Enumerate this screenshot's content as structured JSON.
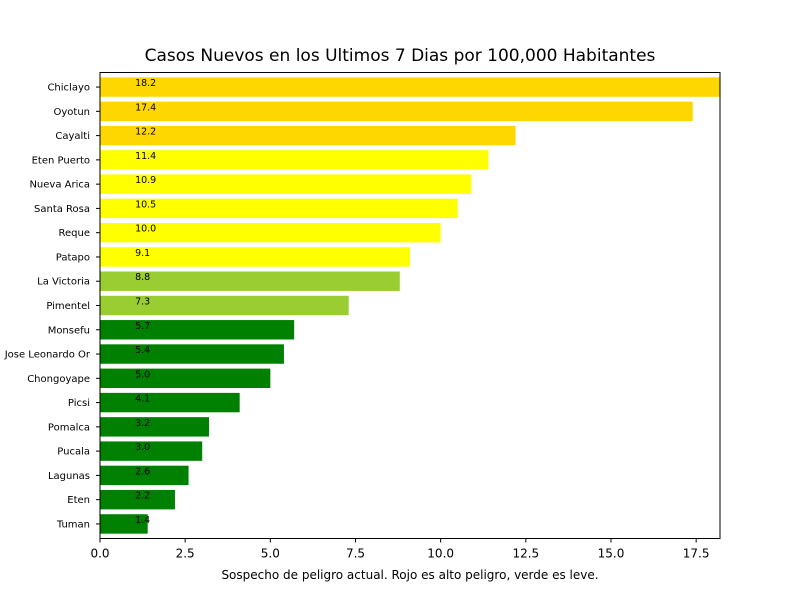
{
  "chart_data": {
    "type": "bar",
    "orientation": "horizontal",
    "title": "Casos Nuevos en los Ultimos 7 Dias por 100,000 Habitantes",
    "xlabel": "Sospecho de peligro actual. Rojo es alto peligro, verde es leve.",
    "ylabel": "",
    "xlim": [
      0,
      18.2
    ],
    "xticks": [
      "0.0",
      "2.5",
      "5.0",
      "7.5",
      "10.0",
      "12.5",
      "15.0",
      "17.5"
    ],
    "grid": false,
    "categories": [
      "Chiclayo",
      "Oyotun",
      "Cayalti",
      "Eten Puerto",
      "Nueva Arica",
      "Santa Rosa",
      "Reque",
      "Patapo",
      "La Victoria",
      "Pimentel",
      "Monsefu",
      "Jose Leonardo Or",
      "Chongoyape",
      "Picsi",
      "Pomalca",
      "Pucala",
      "Lagunas",
      "Eten",
      "Tuman"
    ],
    "values": [
      18.2,
      17.4,
      12.2,
      11.4,
      10.9,
      10.5,
      10.0,
      9.1,
      8.8,
      7.3,
      5.7,
      5.4,
      5.0,
      4.1,
      3.2,
      3.0,
      2.6,
      2.2,
      1.4
    ],
    "labels": [
      "18.2",
      "17.4",
      "12.2",
      "11.4",
      "10.9",
      "10.5",
      "10.0",
      "9.1",
      "8.8",
      "7.3",
      "5.7",
      "5.4",
      "5.0",
      "4.1",
      "3.2",
      "3.0",
      "2.6",
      "2.2",
      "1.4"
    ],
    "colors": [
      "#ffd700",
      "#ffd700",
      "#ffd700",
      "#ffff00",
      "#ffff00",
      "#ffff00",
      "#ffff00",
      "#ffff00",
      "#9acd32",
      "#9acd32",
      "#008000",
      "#008000",
      "#008000",
      "#008000",
      "#008000",
      "#008000",
      "#008000",
      "#008000",
      "#008000"
    ]
  }
}
